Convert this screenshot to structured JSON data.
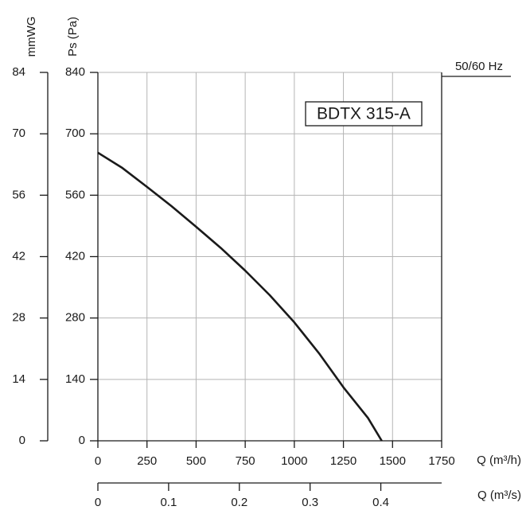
{
  "chart_data": {
    "type": "line",
    "y_label": "Ps (Pa)",
    "y2_label": "mmWG",
    "x_label": "Q (m³/h)",
    "x2_label": "Q (m³/s)",
    "badge": "50/60 Hz",
    "series": [
      {
        "name": "BDTX 315-A",
        "color": "#1a1a1a",
        "x": [
          0,
          125,
          250,
          375,
          500,
          625,
          750,
          875,
          1000,
          1125,
          1250,
          1375,
          1445
        ],
        "values": [
          657,
          622,
          579,
          535,
          488,
          440,
          388,
          332,
          270,
          200,
          122,
          52,
          0
        ]
      }
    ],
    "xlim": [
      0,
      1750
    ],
    "xticks": [
      0,
      250,
      500,
      750,
      1000,
      1250,
      1500,
      1750
    ],
    "x2lim": [
      0,
      0.486
    ],
    "x2ticks": [
      0,
      0.1,
      0.2,
      0.3,
      0.4
    ],
    "ylim": [
      0,
      840
    ],
    "yticks": [
      0,
      140,
      280,
      420,
      560,
      700,
      840
    ],
    "y2lim": [
      0,
      84
    ],
    "y2ticks": [
      0,
      14,
      28,
      42,
      56,
      70,
      84
    ],
    "grid": true
  }
}
